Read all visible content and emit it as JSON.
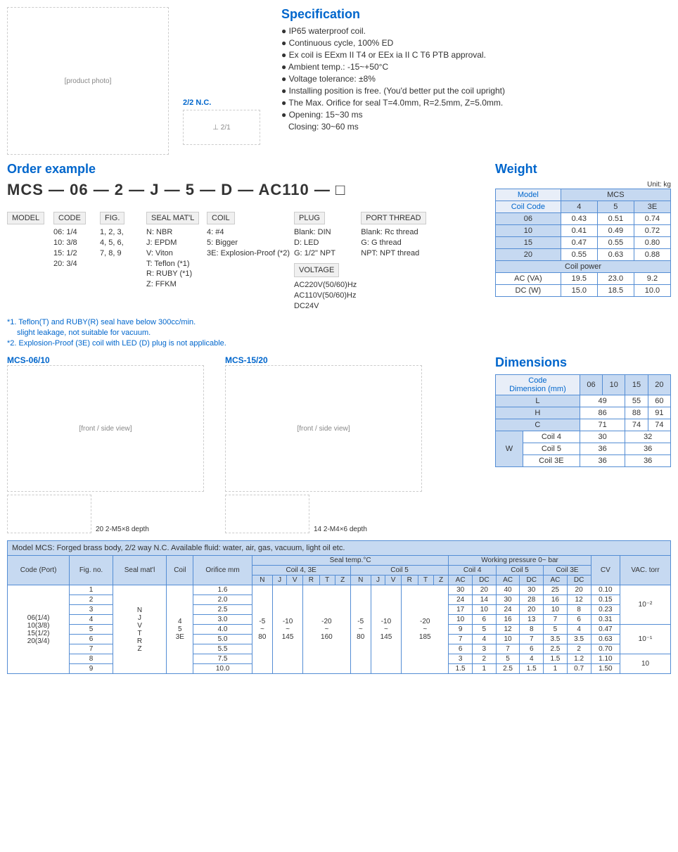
{
  "spec": {
    "title": "Specification",
    "items": [
      "IP65 waterproof coil.",
      "Continuous cycle, 100% ED",
      "Ex coil is EExm II T4 or EEx ia II C T6 PTB approval.",
      "Ambient temp.: -15~+50°C",
      "Voltage tolerance: ±8%",
      "Installing position is free. (You'd better put the coil upright)",
      "The Max. Orifice for seal T=4.0mm, R=2.5mm, Z=5.0mm.",
      "Opening: 15~30 ms"
    ],
    "closing": "Closing: 30~60 ms"
  },
  "schematic_label": "2/2 N.C.",
  "order": {
    "title": "Order example",
    "code": "MCS — 06 — 2 — J — 5 — D — AC110 — □",
    "model_hdr": "MODEL",
    "code_hdr": "CODE",
    "code_opts": [
      "06: 1/4",
      "10: 3/8",
      "15: 1/2",
      "20: 3/4"
    ],
    "fig_hdr": "FIG.",
    "fig_opts": [
      "1, 2, 3,",
      "4, 5, 6,",
      "7, 8, 9"
    ],
    "seal_hdr": "SEAL MAT'L",
    "seal_opts": [
      "N: NBR",
      "J: EPDM",
      "V: Viton",
      "T: Teflon (*1)",
      "R: RUBY (*1)",
      "Z: FFKM"
    ],
    "coil_hdr": "COIL",
    "coil_opts": [
      "4: #4",
      "5: Bigger",
      "3E: Explosion-Proof (*2)"
    ],
    "plug_hdr": "PLUG",
    "plug_opts": [
      "Blank: DIN",
      "D: LED",
      "G: 1/2\" NPT"
    ],
    "volt_hdr": "VOLTAGE",
    "volt_opts": [
      "AC220V(50/60)Hz",
      "AC110V(50/60)Hz",
      "DC24V"
    ],
    "port_hdr": "PORT THREAD",
    "port_opts": [
      "Blank: Rc thread",
      "G: G thread",
      "NPT: NPT thread"
    ],
    "note1": "*1. Teflon(T) and RUBY(R) seal have below 300cc/min.",
    "note1b": "slight leakage, not suitable for vacuum.",
    "note2": "*2. Explosion-Proof (3E) coil with LED (D) plug is not applicable."
  },
  "weight": {
    "title": "Weight",
    "unit": "Unit: kg",
    "model": "Model",
    "mcs": "MCS",
    "coilcode": "Coil Code",
    "cols": [
      "4",
      "5",
      "3E"
    ],
    "rows": [
      {
        "c": "06",
        "v": [
          "0.43",
          "0.51",
          "0.74"
        ]
      },
      {
        "c": "10",
        "v": [
          "0.41",
          "0.49",
          "0.72"
        ]
      },
      {
        "c": "15",
        "v": [
          "0.47",
          "0.55",
          "0.80"
        ]
      },
      {
        "c": "20",
        "v": [
          "0.55",
          "0.63",
          "0.88"
        ]
      }
    ],
    "coilpower": "Coil power",
    "acva": "AC (VA)",
    "acva_v": [
      "19.5",
      "23.0",
      "9.2"
    ],
    "dcw": "DC (W)",
    "dcw_v": [
      "15.0",
      "18.5",
      "10.0"
    ]
  },
  "dimensions": {
    "title": "Dimensions",
    "codehdr": "Code",
    "dimhdr": "Dimension (mm)",
    "cols": [
      "06",
      "10",
      "15",
      "20"
    ],
    "L": {
      "lbl": "L",
      "v": [
        "49",
        "49",
        "55",
        "60"
      ]
    },
    "H": {
      "lbl": "H",
      "v": [
        "86",
        "86",
        "88",
        "91"
      ]
    },
    "C": {
      "lbl": "C",
      "v": [
        "71",
        "71",
        "74",
        "74"
      ]
    },
    "W": {
      "lbl": "W",
      "c4": {
        "lbl": "Coil 4",
        "v": [
          "30",
          "30",
          "32",
          "32"
        ]
      },
      "c5": {
        "lbl": "Coil 5",
        "v": [
          "36",
          "36",
          "36",
          "36"
        ]
      },
      "c3e": {
        "lbl": "Coil 3E",
        "v": [
          "36",
          "36",
          "36",
          "36"
        ]
      }
    }
  },
  "diagrams": {
    "d1": "MCS-06/10",
    "d2": "MCS-15/20",
    "m5": "2-M5×8 depth",
    "m4": "2-M4×6 depth",
    "n20": "20",
    "n14": "14"
  },
  "bigtable": {
    "title": "Model MCS: Forged brass body, 2/2 way N.C. Available fluid: water, air, gas, vacuum, light oil etc.",
    "hdr": {
      "code": "Code (Port)",
      "fig": "Fig. no.",
      "seal": "Seal mat'l",
      "coil": "Coil",
      "orifice": "Orifice mm",
      "sealtemp": "Seal temp.°C",
      "coil43e": "Coil 4, 3E",
      "coil5": "Coil 5",
      "wp": "Working pressure 0~ bar",
      "wp4": "Coil 4",
      "wp5": "Coil 5",
      "wp3e": "Coil 3E",
      "cv": "CV",
      "vac": "VAC. torr",
      "N": "N",
      "J": "J",
      "V": "V",
      "R": "R",
      "T": "T",
      "Z": "Z",
      "AC": "AC",
      "DC": "DC"
    },
    "port": "06(1/4)\n10(3/8)\n15(1/2)\n20(3/4)",
    "seal": "N\nJ\nV\nT\nR\nZ",
    "coil": "4\n5\n3E",
    "temp43e_n": "-5\n~\n80",
    "temp43e_jv": "-10\n~\n145",
    "temp43e_rtz": "-20\n~\n160",
    "temp5_n": "-5\n~\n80",
    "temp5_jv": "-10\n~\n145",
    "temp5_rtz": "-20\n~\n185",
    "rows": [
      {
        "fig": "1",
        "orf": "1.6",
        "c4ac": "30",
        "c4dc": "20",
        "c5ac": "40",
        "c5dc": "30",
        "c3ac": "25",
        "c3dc": "20",
        "cv": "0.10"
      },
      {
        "fig": "2",
        "orf": "2.0",
        "c4ac": "24",
        "c4dc": "14",
        "c5ac": "30",
        "c5dc": "28",
        "c3ac": "16",
        "c3dc": "12",
        "cv": "0.15"
      },
      {
        "fig": "3",
        "orf": "2.5",
        "c4ac": "17",
        "c4dc": "10",
        "c5ac": "24",
        "c5dc": "20",
        "c3ac": "10",
        "c3dc": "8",
        "cv": "0.23"
      },
      {
        "fig": "4",
        "orf": "3.0",
        "c4ac": "10",
        "c4dc": "6",
        "c5ac": "16",
        "c5dc": "13",
        "c3ac": "7",
        "c3dc": "6",
        "cv": "0.31"
      },
      {
        "fig": "5",
        "orf": "4.0",
        "c4ac": "9",
        "c4dc": "5",
        "c5ac": "12",
        "c5dc": "8",
        "c3ac": "5",
        "c3dc": "4",
        "cv": "0.47"
      },
      {
        "fig": "6",
        "orf": "5.0",
        "c4ac": "7",
        "c4dc": "4",
        "c5ac": "10",
        "c5dc": "7",
        "c3ac": "3.5",
        "c3dc": "3.5",
        "cv": "0.63"
      },
      {
        "fig": "7",
        "orf": "5.5",
        "c4ac": "6",
        "c4dc": "3",
        "c5ac": "7",
        "c5dc": "6",
        "c3ac": "2.5",
        "c3dc": "2",
        "cv": "0.70"
      },
      {
        "fig": "8",
        "orf": "7.5",
        "c4ac": "3",
        "c4dc": "2",
        "c5ac": "5",
        "c5dc": "4",
        "c3ac": "1.5",
        "c3dc": "1.2",
        "cv": "1.10"
      },
      {
        "fig": "9",
        "orf": "10.0",
        "c4ac": "1.5",
        "c4dc": "1",
        "c5ac": "2.5",
        "c5dc": "1.5",
        "c3ac": "1",
        "c3dc": "0.7",
        "cv": "1.50"
      }
    ],
    "vac1": "10⁻²",
    "vac2": "10⁻¹",
    "vac3": "10"
  },
  "colors": {
    "heading": "#0066cc",
    "border": "#548dd4",
    "headbg": "#c6d9f1"
  }
}
